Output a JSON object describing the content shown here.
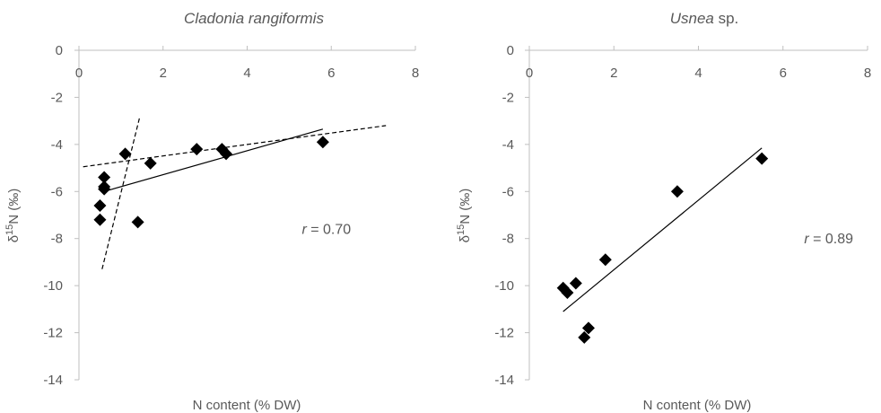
{
  "chart_data": [
    {
      "type": "scatter",
      "title": "Cladonia rangiformis",
      "title_suffix": "",
      "xlabel": "N content (% DW)",
      "ylabel_pre": "δ",
      "ylabel_sup": "15",
      "ylabel_post": "N (‰)",
      "xlim": [
        0,
        8
      ],
      "ylim": [
        -14,
        0
      ],
      "xticks": [
        0,
        2,
        4,
        6,
        8
      ],
      "yticks": [
        0,
        -2,
        -4,
        -6,
        -8,
        -10,
        -12,
        -14
      ],
      "grid": false,
      "points": [
        {
          "x": 0.5,
          "y": -7.2
        },
        {
          "x": 0.5,
          "y": -6.6
        },
        {
          "x": 0.6,
          "y": -5.8
        },
        {
          "x": 0.6,
          "y": -5.4
        },
        {
          "x": 0.6,
          "y": -5.9
        },
        {
          "x": 1.1,
          "y": -4.4
        },
        {
          "x": 1.4,
          "y": -7.3
        },
        {
          "x": 1.7,
          "y": -4.8
        },
        {
          "x": 2.8,
          "y": -4.2
        },
        {
          "x": 3.4,
          "y": -4.2
        },
        {
          "x": 3.5,
          "y": -4.4
        },
        {
          "x": 5.8,
          "y": -3.9
        }
      ],
      "lines": [
        {
          "style": "solid",
          "x": [
            0.6,
            5.8
          ],
          "y": [
            -6.0,
            -3.35
          ]
        },
        {
          "style": "dashed",
          "x": [
            0.1,
            7.3
          ],
          "y": [
            -4.95,
            -3.2
          ]
        },
        {
          "style": "dashed",
          "x": [
            0.55,
            1.45
          ],
          "y": [
            -9.3,
            -2.8
          ]
        }
      ],
      "r_prefix": "r",
      "r_value": " = 0.70",
      "r_pos": [
        5.3,
        -7.8
      ]
    },
    {
      "type": "scatter",
      "title": "Usnea",
      "title_suffix": " sp.",
      "xlabel": "N content (% DW)",
      "ylabel_pre": "δ",
      "ylabel_sup": "15",
      "ylabel_post": "N (‰)",
      "xlim": [
        0,
        8
      ],
      "ylim": [
        -14,
        0
      ],
      "xticks": [
        0,
        2,
        4,
        6,
        8
      ],
      "yticks": [
        0,
        -2,
        -4,
        -6,
        -8,
        -10,
        -12,
        -14
      ],
      "grid": false,
      "points": [
        {
          "x": 0.8,
          "y": -10.1
        },
        {
          "x": 0.9,
          "y": -10.3
        },
        {
          "x": 1.1,
          "y": -9.9
        },
        {
          "x": 1.3,
          "y": -12.2
        },
        {
          "x": 1.4,
          "y": -11.8
        },
        {
          "x": 1.8,
          "y": -8.9
        },
        {
          "x": 3.5,
          "y": -6.0
        },
        {
          "x": 5.5,
          "y": -4.6
        }
      ],
      "lines": [
        {
          "style": "solid",
          "x": [
            0.8,
            5.5
          ],
          "y": [
            -11.1,
            -4.15
          ]
        }
      ],
      "r_prefix": "r",
      "r_value": " = 0.89",
      "r_pos": [
        6.5,
        -8.2
      ]
    }
  ]
}
